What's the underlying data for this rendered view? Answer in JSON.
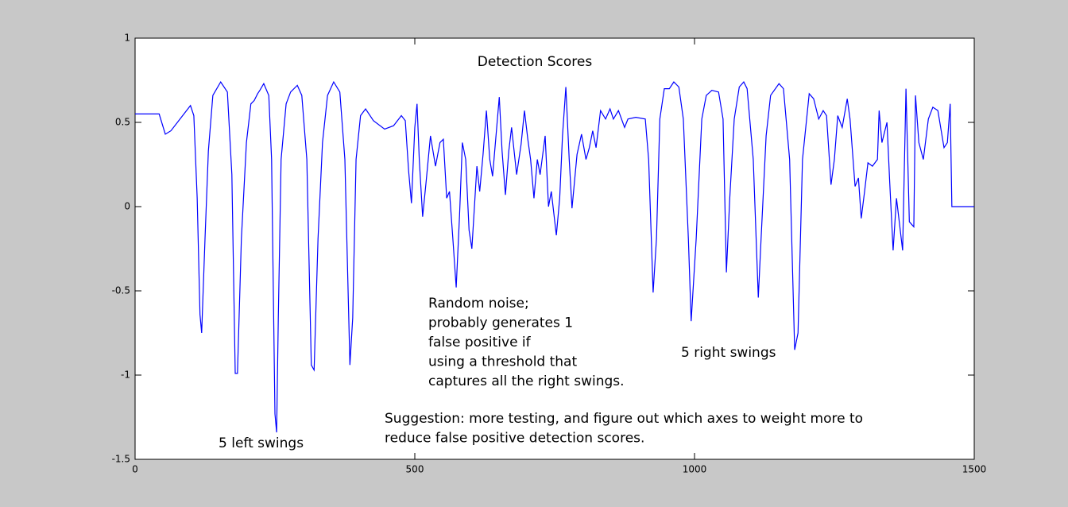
{
  "chart_data": {
    "type": "line",
    "title": "Detection Scores",
    "x": [
      0,
      43,
      54,
      64,
      85,
      99,
      105,
      111,
      116,
      119,
      125,
      131,
      139,
      153,
      165,
      173,
      179,
      183,
      190,
      199,
      207,
      213,
      219,
      223,
      230,
      239,
      244,
      250,
      253,
      256,
      261,
      270,
      278,
      290,
      298,
      307,
      315,
      320,
      327,
      335,
      344,
      355,
      366,
      375,
      384,
      389,
      395,
      403,
      412,
      426,
      446,
      462,
      476,
      483,
      489,
      494,
      500,
      504,
      508,
      514,
      520,
      528,
      537,
      545,
      551,
      557,
      562,
      568,
      574,
      580,
      585,
      591,
      597,
      602,
      611,
      616,
      622,
      628,
      634,
      639,
      651,
      656,
      662,
      668,
      673,
      682,
      690,
      696,
      702,
      707,
      713,
      719,
      724,
      733,
      739,
      744,
      753,
      759,
      764,
      770,
      776,
      781,
      790,
      798,
      806,
      812,
      818,
      824,
      832,
      841,
      849,
      855,
      864,
      875,
      881,
      895,
      912,
      918,
      926,
      932,
      938,
      946,
      955,
      963,
      972,
      980,
      989,
      994,
      1003,
      1013,
      1021,
      1031,
      1043,
      1051,
      1057,
      1063,
      1071,
      1080,
      1088,
      1094,
      1105,
      1114,
      1119,
      1128,
      1136,
      1151,
      1159,
      1170,
      1179,
      1185,
      1193,
      1205,
      1213,
      1222,
      1230,
      1236,
      1244,
      1250,
      1256,
      1264,
      1273,
      1278,
      1287,
      1293,
      1298,
      1304,
      1310,
      1318,
      1327,
      1330,
      1335,
      1344,
      1349,
      1355,
      1361,
      1366,
      1372,
      1378,
      1384,
      1392,
      1395,
      1401,
      1409,
      1418,
      1426,
      1435,
      1446,
      1452,
      1457,
      1460,
      1500
    ],
    "series": [
      {
        "name": "Detection score",
        "color": "#0000ff",
        "values": [
          0.55,
          0.55,
          0.43,
          0.45,
          0.54,
          0.6,
          0.54,
          0.05,
          -0.64,
          -0.75,
          -0.19,
          0.33,
          0.66,
          0.74,
          0.68,
          0.19,
          -0.99,
          -0.99,
          -0.19,
          0.38,
          0.61,
          0.63,
          0.67,
          0.69,
          0.73,
          0.66,
          0.28,
          -1.23,
          -1.34,
          -0.66,
          0.28,
          0.61,
          0.68,
          0.72,
          0.66,
          0.28,
          -0.94,
          -0.97,
          -0.19,
          0.38,
          0.66,
          0.74,
          0.68,
          0.28,
          -0.94,
          -0.66,
          0.28,
          0.54,
          0.58,
          0.51,
          0.46,
          0.48,
          0.54,
          0.51,
          0.21,
          0.02,
          0.47,
          0.61,
          0.28,
          -0.06,
          0.14,
          0.42,
          0.24,
          0.38,
          0.4,
          0.05,
          0.09,
          -0.19,
          -0.48,
          -0.05,
          0.38,
          0.28,
          -0.14,
          -0.25,
          0.24,
          0.09,
          0.31,
          0.57,
          0.28,
          0.18,
          0.65,
          0.33,
          0.07,
          0.33,
          0.47,
          0.19,
          0.37,
          0.57,
          0.4,
          0.28,
          0.05,
          0.28,
          0.19,
          0.42,
          0.0,
          0.09,
          -0.17,
          0.05,
          0.42,
          0.71,
          0.28,
          -0.01,
          0.31,
          0.43,
          0.28,
          0.35,
          0.45,
          0.35,
          0.57,
          0.52,
          0.58,
          0.52,
          0.57,
          0.47,
          0.52,
          0.53,
          0.52,
          0.28,
          -0.51,
          -0.19,
          0.52,
          0.7,
          0.7,
          0.74,
          0.71,
          0.52,
          -0.19,
          -0.68,
          -0.19,
          0.52,
          0.66,
          0.69,
          0.68,
          0.52,
          -0.39,
          0.05,
          0.52,
          0.71,
          0.74,
          0.7,
          0.28,
          -0.54,
          -0.19,
          0.42,
          0.66,
          0.73,
          0.7,
          0.28,
          -0.85,
          -0.75,
          0.28,
          0.67,
          0.64,
          0.52,
          0.57,
          0.54,
          0.13,
          0.28,
          0.54,
          0.47,
          0.64,
          0.52,
          0.12,
          0.17,
          -0.07,
          0.09,
          0.26,
          0.24,
          0.28,
          0.57,
          0.38,
          0.5,
          0.14,
          -0.26,
          0.05,
          -0.09,
          -0.26,
          0.7,
          -0.09,
          -0.12,
          0.66,
          0.38,
          0.28,
          0.52,
          0.59,
          0.57,
          0.35,
          0.38,
          0.61,
          0,
          0
        ]
      }
    ],
    "xlim": [
      0,
      1500
    ],
    "xticks": [
      0,
      500,
      1000,
      1500
    ],
    "ylim": [
      -1.5,
      1
    ],
    "yticks": [
      1,
      0.5,
      0,
      -0.5,
      -1,
      -1.5
    ],
    "annotations": [
      {
        "lines": [
          "5 left swings"
        ]
      },
      {
        "lines": [
          "Random noise;",
          "probably generates 1",
          "false positive if",
          "using a threshold that",
          "captures all the right swings."
        ]
      },
      {
        "lines": [
          "5 right swings"
        ]
      },
      {
        "lines": [
          "Suggestion: more testing, and figure out which axes to weight more to",
          "reduce false positive detection scores."
        ]
      }
    ]
  }
}
